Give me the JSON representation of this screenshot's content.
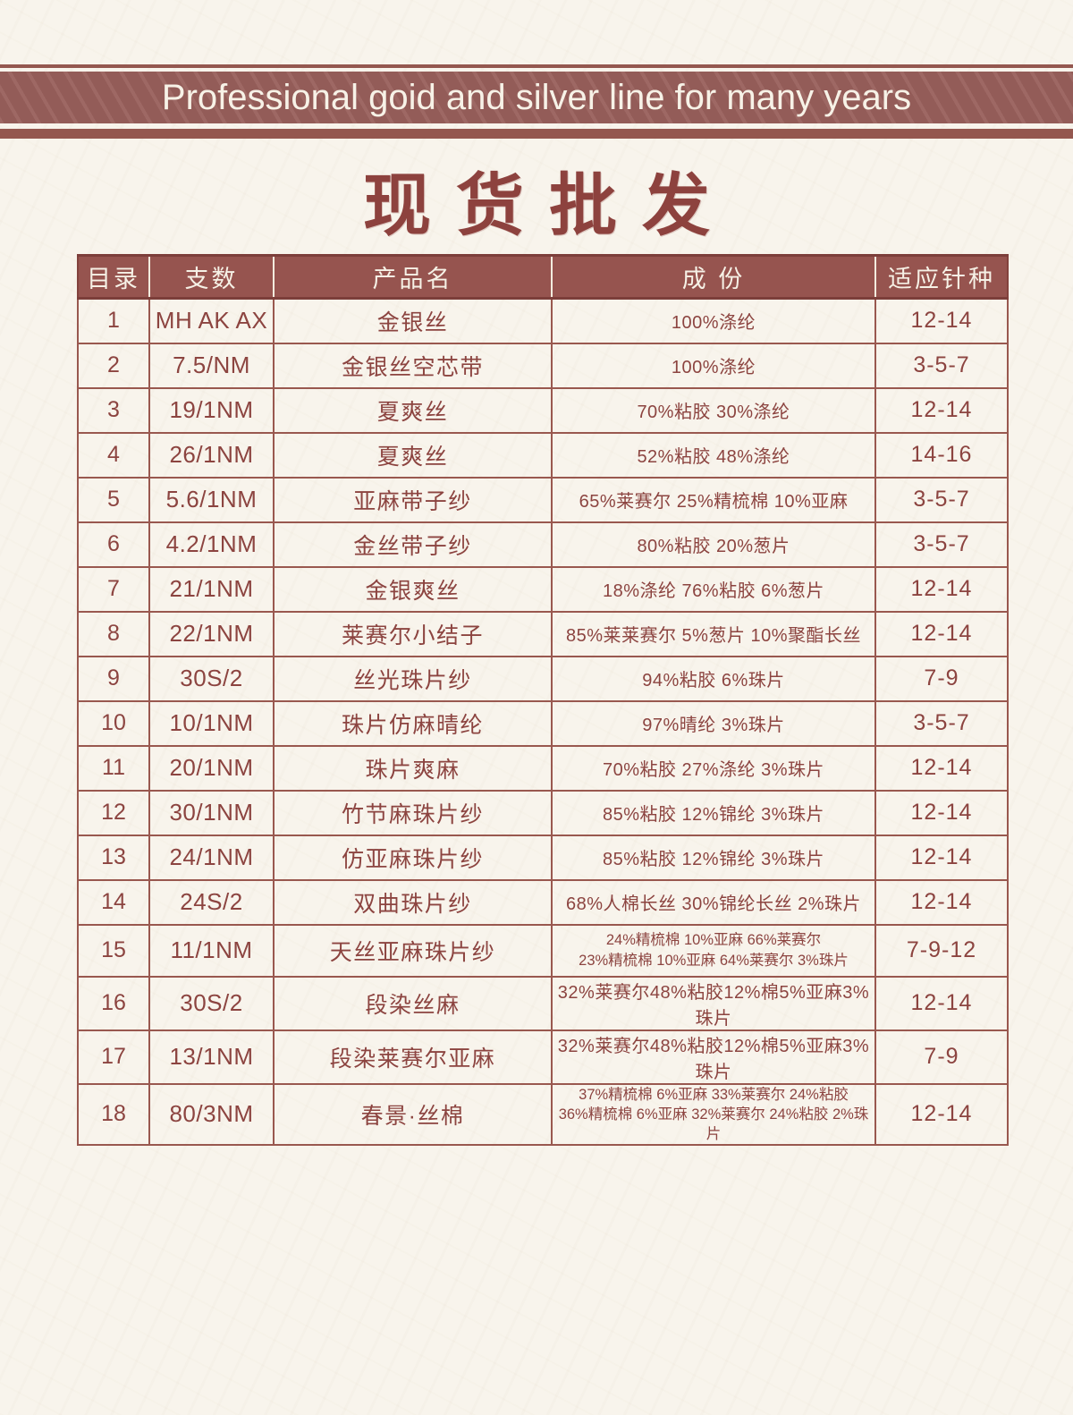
{
  "banner": {
    "text": "Professional goid and silver line for many years"
  },
  "title": {
    "text": "现货批发"
  },
  "colors": {
    "banner_bg": "#99605c",
    "stripe": "#94574f",
    "table_border": "#99584f",
    "header_bg": "#96544f",
    "text_maroon": "#8c4440",
    "page_bg": "#f8f4ec"
  },
  "table": {
    "headers": [
      "目录",
      "支数",
      "产品名",
      "成  份",
      "适应针种"
    ],
    "rows": [
      {
        "no": "1",
        "count": "MH AK AX",
        "name": "金银丝",
        "composition": [
          "100%涤纶"
        ],
        "needle": "12-14"
      },
      {
        "no": "2",
        "count": "7.5/NM",
        "name": "金银丝空芯带",
        "composition": [
          "100%涤纶"
        ],
        "needle": "3-5-7"
      },
      {
        "no": "3",
        "count": "19/1NM",
        "name": "夏爽丝",
        "composition": [
          "70%粘胶 30%涤纶"
        ],
        "needle": "12-14"
      },
      {
        "no": "4",
        "count": "26/1NM",
        "name": "夏爽丝",
        "composition": [
          "52%粘胶 48%涤纶"
        ],
        "needle": "14-16"
      },
      {
        "no": "5",
        "count": "5.6/1NM",
        "name": "亚麻带子纱",
        "composition": [
          "65%莱赛尔 25%精梳棉 10%亚麻"
        ],
        "needle": "3-5-7"
      },
      {
        "no": "6",
        "count": "4.2/1NM",
        "name": "金丝带子纱",
        "composition": [
          "80%粘胶 20%葱片"
        ],
        "needle": "3-5-7"
      },
      {
        "no": "7",
        "count": "21/1NM",
        "name": "金银爽丝",
        "composition": [
          "18%涤纶 76%粘胶 6%葱片"
        ],
        "needle": "12-14"
      },
      {
        "no": "8",
        "count": "22/1NM",
        "name": "莱赛尔小结子",
        "composition": [
          "85%莱莱赛尔 5%葱片 10%聚酯长丝"
        ],
        "needle": "12-14"
      },
      {
        "no": "9",
        "count": "30S/2",
        "name": "丝光珠片纱",
        "composition": [
          "94%粘胶 6%珠片"
        ],
        "needle": "7-9"
      },
      {
        "no": "10",
        "count": "10/1NM",
        "name": "珠片仿麻晴纶",
        "composition": [
          "97%晴纶 3%珠片"
        ],
        "needle": "3-5-7"
      },
      {
        "no": "11",
        "count": "20/1NM",
        "name": "珠片爽麻",
        "composition": [
          "70%粘胶 27%涤纶 3%珠片"
        ],
        "needle": "12-14"
      },
      {
        "no": "12",
        "count": "30/1NM",
        "name": "竹节麻珠片纱",
        "composition": [
          "85%粘胶 12%锦纶 3%珠片"
        ],
        "needle": "12-14"
      },
      {
        "no": "13",
        "count": "24/1NM",
        "name": "仿亚麻珠片纱",
        "composition": [
          "85%粘胶 12%锦纶 3%珠片"
        ],
        "needle": "12-14"
      },
      {
        "no": "14",
        "count": "24S/2",
        "name": "双曲珠片纱",
        "composition": [
          "68%人棉长丝 30%锦纶长丝 2%珠片"
        ],
        "needle": "12-14"
      },
      {
        "no": "15",
        "count": "11/1NM",
        "name": "天丝亚麻珠片纱",
        "composition": [
          "24%精梳棉 10%亚麻 66%莱赛尔",
          "23%精梳棉 10%亚麻 64%莱赛尔 3%珠片"
        ],
        "needle": "7-9-12"
      },
      {
        "no": "16",
        "count": "30S/2",
        "name": "段染丝麻",
        "composition": [
          "32%莱赛尔48%粘胶12%棉5%亚麻3%珠片"
        ],
        "needle": "12-14"
      },
      {
        "no": "17",
        "count": "13/1NM",
        "name": "段染莱赛尔亚麻",
        "composition": [
          "32%莱赛尔48%粘胶12%棉5%亚麻3%珠片"
        ],
        "needle": "7-9"
      },
      {
        "no": "18",
        "count": "80/3NM",
        "name": "春景·丝棉",
        "composition": [
          "37%精梳棉 6%亚麻 33%莱赛尔 24%粘胶",
          "36%精梳棉 6%亚麻 32%莱赛尔 24%粘胶 2%珠片"
        ],
        "needle": "12-14"
      }
    ]
  }
}
